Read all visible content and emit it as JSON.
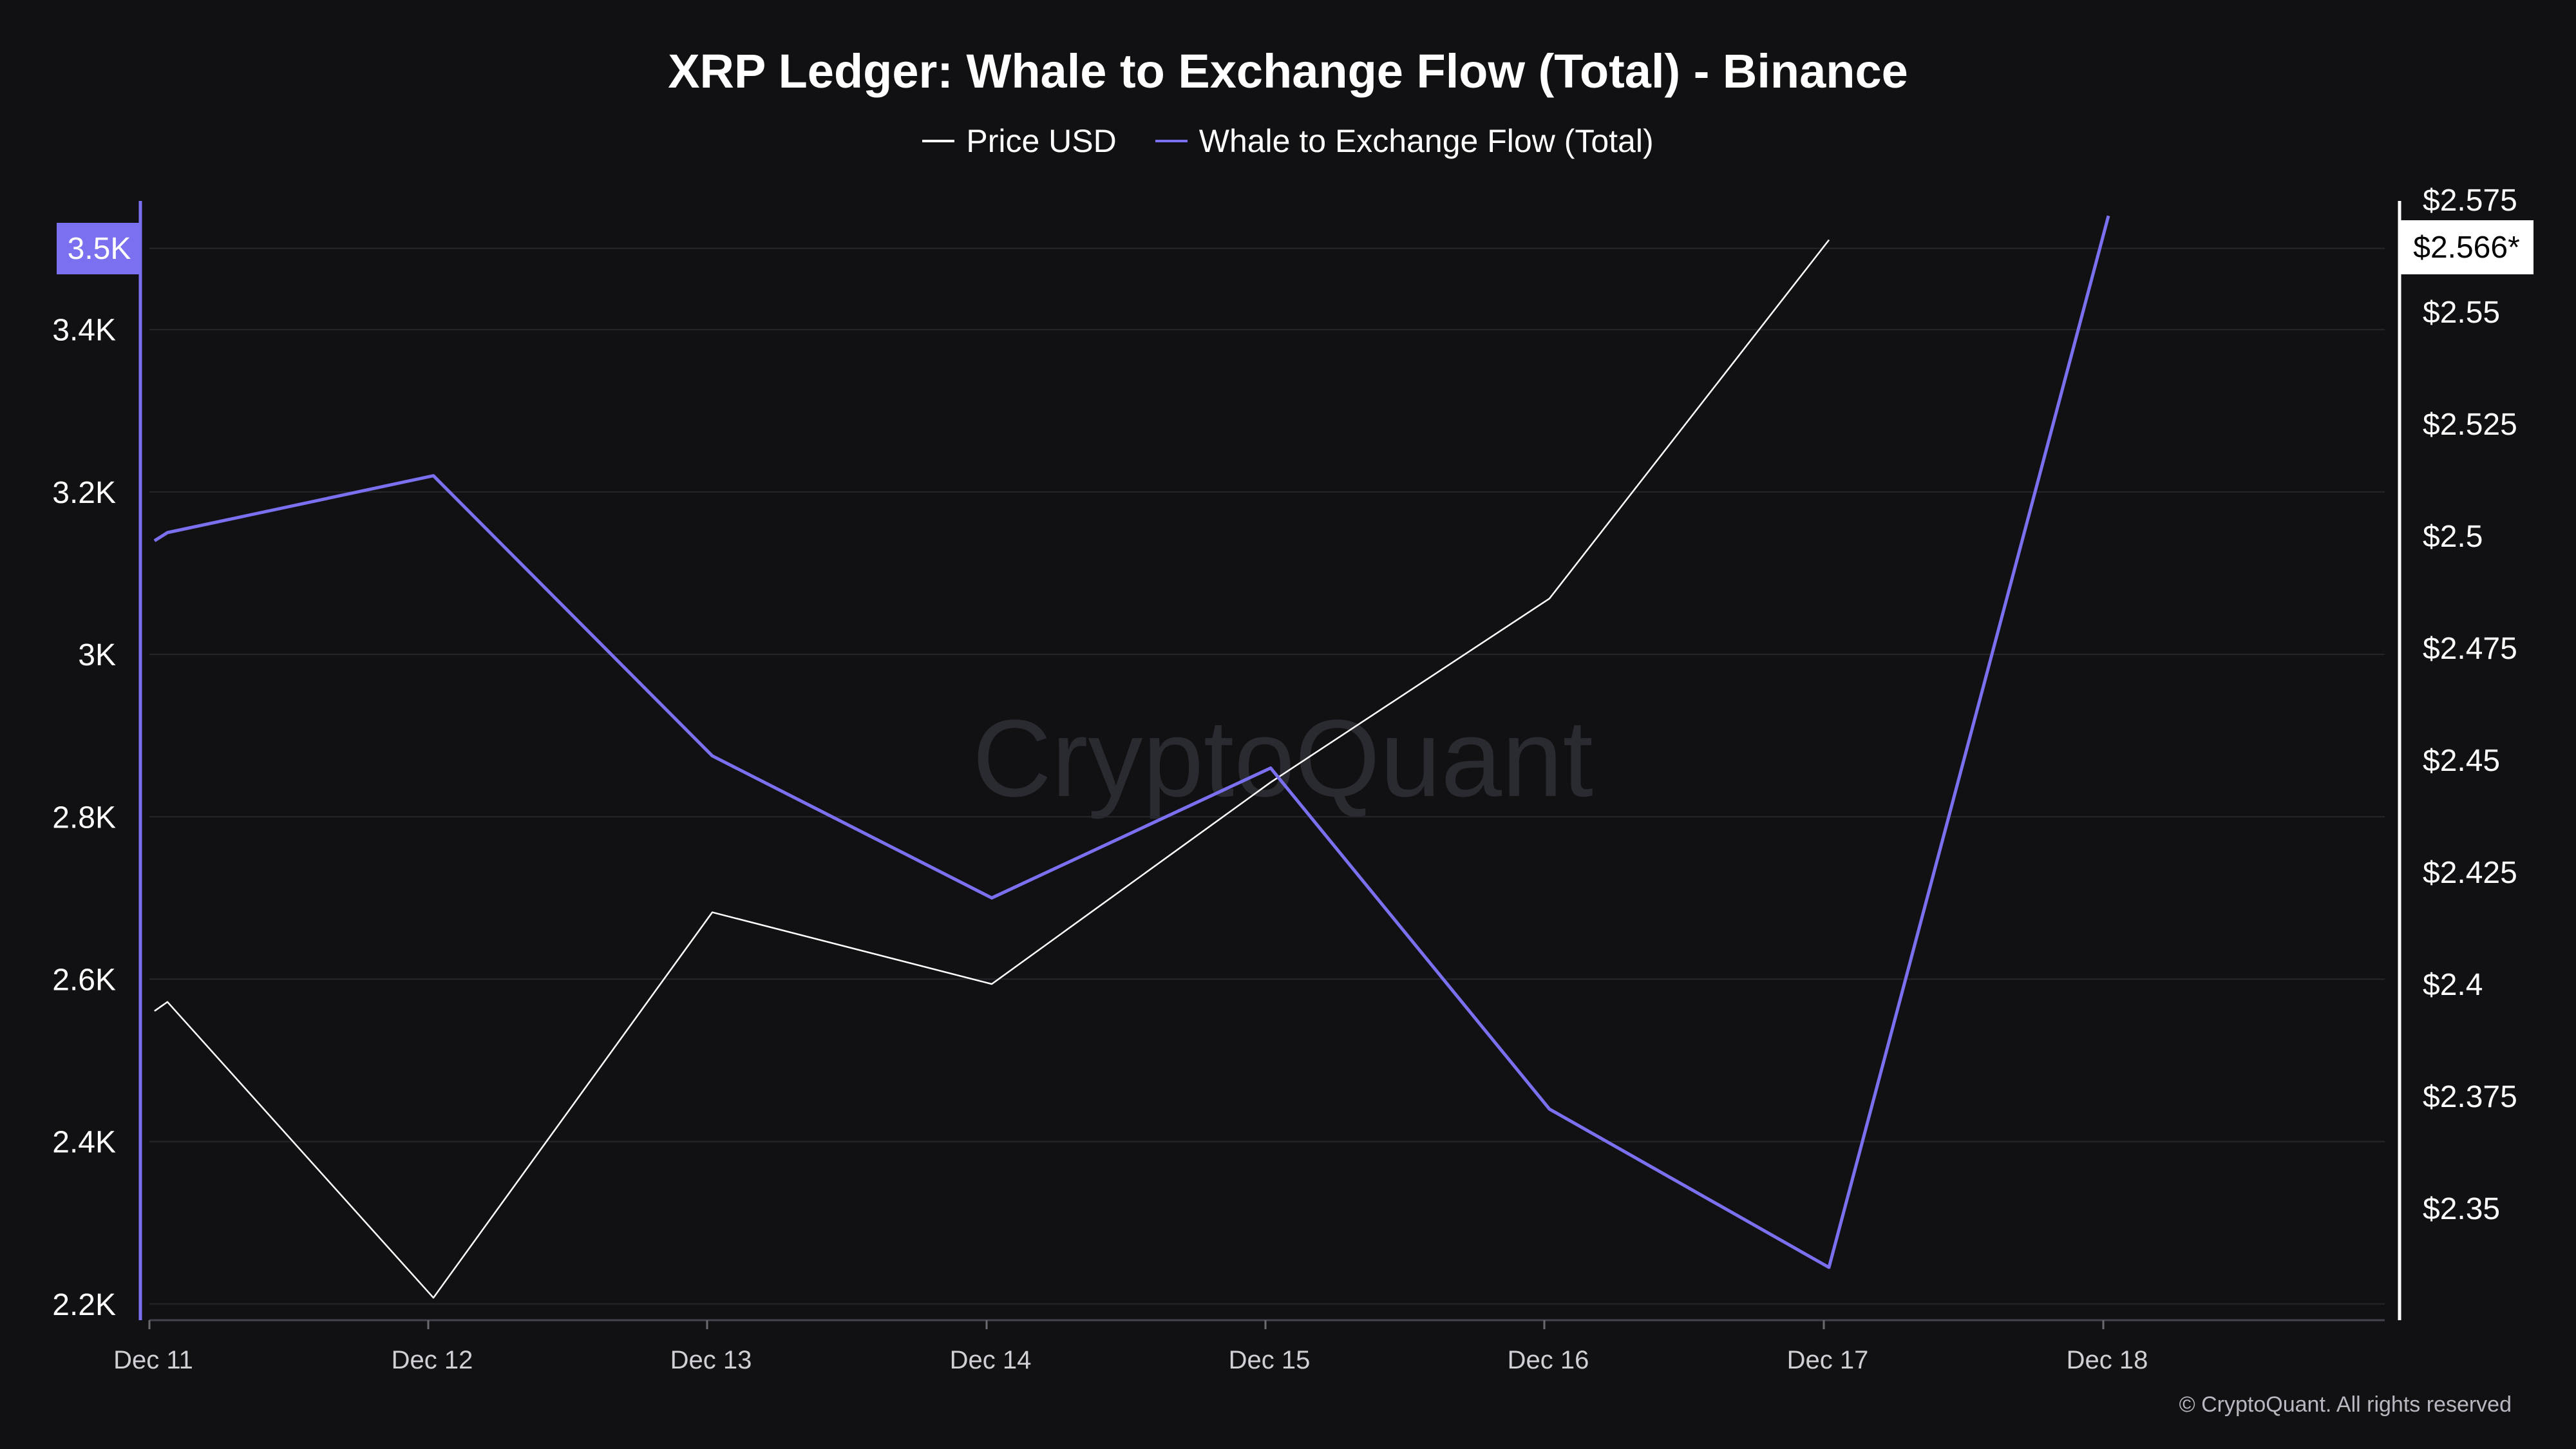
{
  "title": "XRP Ledger: Whale to Exchange Flow (Total) - Binance",
  "legend": [
    {
      "label": "Price USD",
      "color": "#ffffff"
    },
    {
      "label": "Whale to Exchange Flow (Total)",
      "color": "#7b70f0"
    }
  ],
  "watermark": "CryptoQuant",
  "copyright": "© CryptoQuant. All rights reserved",
  "badges": {
    "left_last_value": "3.5K",
    "right_last_value": "$2.566*"
  },
  "chart_data": {
    "type": "line",
    "title": "XRP Ledger: Whale to Exchange Flow (Total) - Binance",
    "x": [
      "Dec 11",
      "Dec 11",
      "Dec 12",
      "Dec 13",
      "Dec 14",
      "Dec 15",
      "Dec 16",
      "Dec 17",
      "Dec 18"
    ],
    "x_ticks": [
      "Dec 11",
      "Dec 12",
      "Dec 13",
      "Dec 14",
      "Dec 15",
      "Dec 16",
      "Dec 17",
      "Dec 18"
    ],
    "left_axis": {
      "ticks": [
        "2.2K",
        "2.4K",
        "2.6K",
        "2.8K",
        "3K",
        "3.2K",
        "3.4K"
      ],
      "range": [
        2180,
        3560
      ]
    },
    "right_axis": {
      "ticks": [
        "$2.35",
        "$2.375",
        "$2.4",
        "$2.425",
        "$2.45",
        "$2.475",
        "$2.5",
        "$2.525",
        "$2.55",
        "$2.575"
      ],
      "range": [
        2.325,
        2.575
      ]
    },
    "series": [
      {
        "name": "Price USD",
        "axis": "right",
        "color": "#ffffff",
        "points": [
          {
            "x": "Dec 11",
            "y": 2.394
          },
          {
            "x": "Dec 11",
            "y": 2.396
          },
          {
            "x": "Dec 12",
            "y": 2.33
          },
          {
            "x": "Dec 13",
            "y": 2.416
          },
          {
            "x": "Dec 14",
            "y": 2.4
          },
          {
            "x": "Dec 15",
            "y": 2.445
          },
          {
            "x": "Dec 16",
            "y": 2.486
          },
          {
            "x": "Dec 17",
            "y": 2.566
          }
        ]
      },
      {
        "name": "Whale to Exchange Flow (Total)",
        "axis": "left",
        "color": "#7b70f0",
        "points": [
          {
            "x": "Dec 11",
            "y": 3140
          },
          {
            "x": "Dec 11",
            "y": 3150
          },
          {
            "x": "Dec 12",
            "y": 3220
          },
          {
            "x": "Dec 13",
            "y": 2875
          },
          {
            "x": "Dec 14",
            "y": 2700
          },
          {
            "x": "Dec 15",
            "y": 2860
          },
          {
            "x": "Dec 16",
            "y": 2440
          },
          {
            "x": "Dec 17",
            "y": 2245
          },
          {
            "x": "Dec 18",
            "y": 3540
          }
        ]
      }
    ]
  }
}
